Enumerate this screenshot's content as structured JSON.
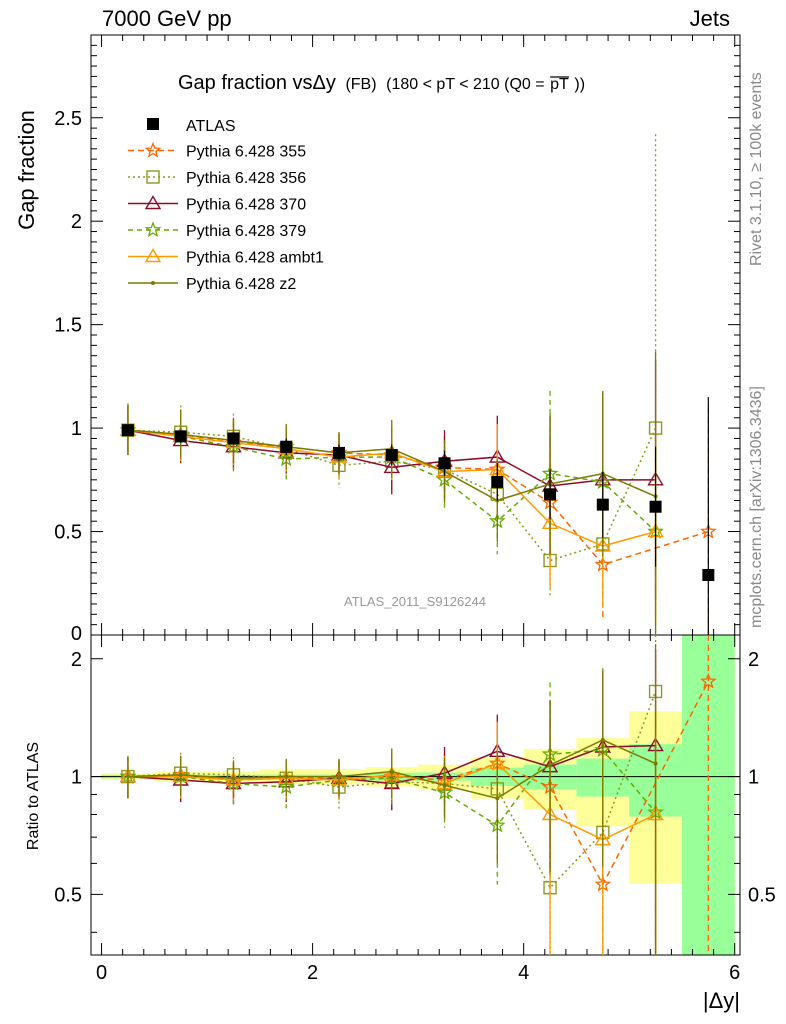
{
  "header": {
    "energy_label": "7000 GeV pp",
    "category_label": "Jets"
  },
  "side_labels": {
    "rivet": "Rivet 3.1.10, ≥ 100k events",
    "source": "mcplots.cern.ch [arXiv:1306.3436]"
  },
  "chart_data": {
    "type": "line",
    "title_main": "Gap fraction vsΔy",
    "title_sub": "(FB)",
    "title_range": "(180 < pT < 210 (Q0 =",
    "title_pt": "pT",
    "title_end": "))",
    "analysis_label": "ATLAS_2011_S9126244",
    "xlabel": "|Δy|",
    "ylabel_top": "Gap fraction",
    "ylabel_bottom": "Ratio to ATLAS",
    "xlim": [
      -0.1,
      6.05
    ],
    "ylim_top": [
      0,
      2.9
    ],
    "ylim_bottom": [
      0.35,
      2.3
    ],
    "x_ticks": [
      0,
      2,
      4,
      6
    ],
    "x_tick_labels": [
      "0",
      "2",
      "4",
      "6"
    ],
    "y_ticks_top": [
      0.5,
      1,
      1.5,
      2,
      2.5
    ],
    "y_tick_labels_top": [
      "0.5",
      "1",
      "1.5",
      "2",
      "2.5"
    ],
    "y_tick_zero_label": "0",
    "y_ticks_bottom": [
      0.5,
      1,
      2
    ],
    "y_tick_labels_bottom": [
      "0.5",
      "1",
      "2"
    ],
    "x": [
      0.25,
      0.75,
      1.25,
      1.75,
      2.25,
      2.75,
      3.25,
      3.75,
      4.25,
      4.75,
      5.25,
      5.75
    ],
    "data": {
      "name": "ATLAS",
      "color": "#000000",
      "values": [
        0.99,
        0.96,
        0.95,
        0.91,
        0.88,
        0.87,
        0.83,
        0.74,
        0.68,
        0.63,
        0.62,
        0.29
      ],
      "band_stat": [
        0.01,
        0.01,
        0.01,
        0.01,
        0.01,
        0.02,
        0.02,
        0.04,
        0.05,
        0.07,
        0.13,
        0.45
      ],
      "band_total": [
        0.02,
        0.03,
        0.03,
        0.04,
        0.04,
        0.05,
        0.06,
        0.09,
        0.12,
        0.16,
        0.29,
        0.86
      ]
    },
    "series": [
      {
        "name": "Pythia 6.428 355",
        "color": "#ff6600",
        "dash": "6,4",
        "marker": "star",
        "values": [
          0.99,
          0.97,
          0.93,
          0.91,
          0.88,
          0.87,
          0.81,
          0.8,
          0.64,
          0.34,
          null,
          0.5
        ],
        "err": [
          0.12,
          0.12,
          0.11,
          0.1,
          0.1,
          0.13,
          0.15,
          0.2,
          0.3,
          0.26,
          null,
          0.6
        ]
      },
      {
        "name": "Pythia 6.428 356",
        "color": "#8b9a1e",
        "dash": "2,3",
        "marker": "opensquare",
        "values": [
          0.99,
          0.98,
          0.96,
          0.9,
          0.82,
          0.84,
          0.8,
          0.68,
          0.36,
          0.44,
          1.0,
          null
        ],
        "err": [
          0.13,
          0.13,
          0.11,
          0.11,
          0.11,
          0.14,
          0.16,
          0.2,
          0.18,
          0.3,
          1.42,
          null
        ]
      },
      {
        "name": "Pythia 6.428 370",
        "color": "#8b0a28",
        "dash": "",
        "marker": "opentriangle",
        "values": [
          0.99,
          0.94,
          0.91,
          0.88,
          0.87,
          0.81,
          0.84,
          0.86,
          0.72,
          0.75,
          0.75,
          null
        ],
        "err": [
          0.12,
          0.11,
          0.11,
          0.1,
          0.1,
          0.13,
          0.15,
          0.2,
          0.34,
          0.42,
          0.58,
          null
        ]
      },
      {
        "name": "Pythia 6.428 379",
        "color": "#66aa00",
        "dash": "5,4",
        "marker": "star",
        "values": [
          0.99,
          0.96,
          0.91,
          0.85,
          0.86,
          0.86,
          0.75,
          0.55,
          0.78,
          0.74,
          0.5,
          null
        ],
        "err": [
          0.12,
          0.12,
          0.12,
          0.1,
          0.1,
          0.13,
          0.15,
          0.16,
          0.4,
          0.42,
          0.4,
          null
        ]
      },
      {
        "name": "Pythia 6.428 ambt1",
        "color": "#ff9900",
        "dash": "",
        "marker": "opentriangle",
        "values": [
          0.99,
          0.96,
          0.93,
          0.9,
          0.86,
          0.88,
          0.79,
          0.8,
          0.54,
          0.43,
          0.5,
          null
        ],
        "err": [
          0.12,
          0.12,
          0.11,
          0.11,
          0.1,
          0.13,
          0.15,
          0.22,
          0.32,
          0.3,
          0.45,
          null
        ]
      },
      {
        "name": "Pythia 6.428 z2",
        "color": "#7a7a00",
        "dash": "",
        "marker": "dot",
        "values": [
          0.99,
          0.97,
          0.94,
          0.91,
          0.88,
          0.9,
          0.79,
          0.65,
          0.73,
          0.78,
          0.67,
          null
        ],
        "err": [
          0.12,
          0.12,
          0.11,
          0.11,
          0.1,
          0.14,
          0.15,
          0.2,
          0.34,
          0.4,
          0.7,
          null
        ]
      }
    ],
    "ratio_series": [
      {
        "name": "Pythia 6.428 355",
        "values": [
          1.0,
          1.01,
          0.98,
          0.99,
          0.99,
          1.0,
          0.98,
          1.08,
          0.94,
          0.53,
          null,
          1.75
        ],
        "err": [
          0.12,
          0.12,
          0.11,
          0.11,
          0.11,
          0.14,
          0.17,
          0.28,
          0.44,
          0.42,
          null,
          2.0
        ]
      },
      {
        "name": "Pythia 6.428 356",
        "values": [
          1.0,
          1.02,
          1.01,
          0.99,
          0.94,
          0.97,
          0.96,
          0.93,
          0.52,
          0.72,
          1.65,
          null
        ],
        "err": [
          0.13,
          0.13,
          0.11,
          0.11,
          0.12,
          0.15,
          0.18,
          0.26,
          0.27,
          0.47,
          2.3,
          null
        ]
      },
      {
        "name": "Pythia 6.428 370",
        "values": [
          1.0,
          0.98,
          0.96,
          0.97,
          0.99,
          0.96,
          1.02,
          1.16,
          1.06,
          1.19,
          1.2,
          null
        ],
        "err": [
          0.12,
          0.12,
          0.11,
          0.11,
          0.11,
          0.14,
          0.17,
          0.28,
          0.5,
          0.67,
          0.9,
          null
        ]
      },
      {
        "name": "Pythia 6.428 379",
        "values": [
          1.0,
          1.0,
          0.96,
          0.94,
          0.98,
          0.99,
          0.91,
          0.75,
          1.14,
          1.17,
          0.81,
          null
        ],
        "err": [
          0.12,
          0.12,
          0.12,
          0.11,
          0.11,
          0.14,
          0.17,
          0.22,
          0.6,
          0.68,
          0.64,
          null
        ]
      },
      {
        "name": "Pythia 6.428 ambt1",
        "values": [
          1.0,
          1.0,
          0.98,
          0.99,
          0.98,
          1.01,
          0.96,
          1.08,
          0.8,
          0.69,
          0.8,
          null
        ],
        "err": [
          0.12,
          0.12,
          0.11,
          0.11,
          0.11,
          0.14,
          0.17,
          0.3,
          0.48,
          0.48,
          0.72,
          null
        ]
      },
      {
        "name": "Pythia 6.428 z2",
        "values": [
          1.0,
          1.01,
          0.99,
          1.0,
          1.0,
          1.03,
          0.95,
          0.88,
          1.07,
          1.24,
          1.08,
          null
        ],
        "err": [
          0.12,
          0.12,
          0.11,
          0.11,
          0.11,
          0.15,
          0.17,
          0.28,
          0.5,
          0.65,
          1.1,
          null
        ]
      }
    ]
  }
}
